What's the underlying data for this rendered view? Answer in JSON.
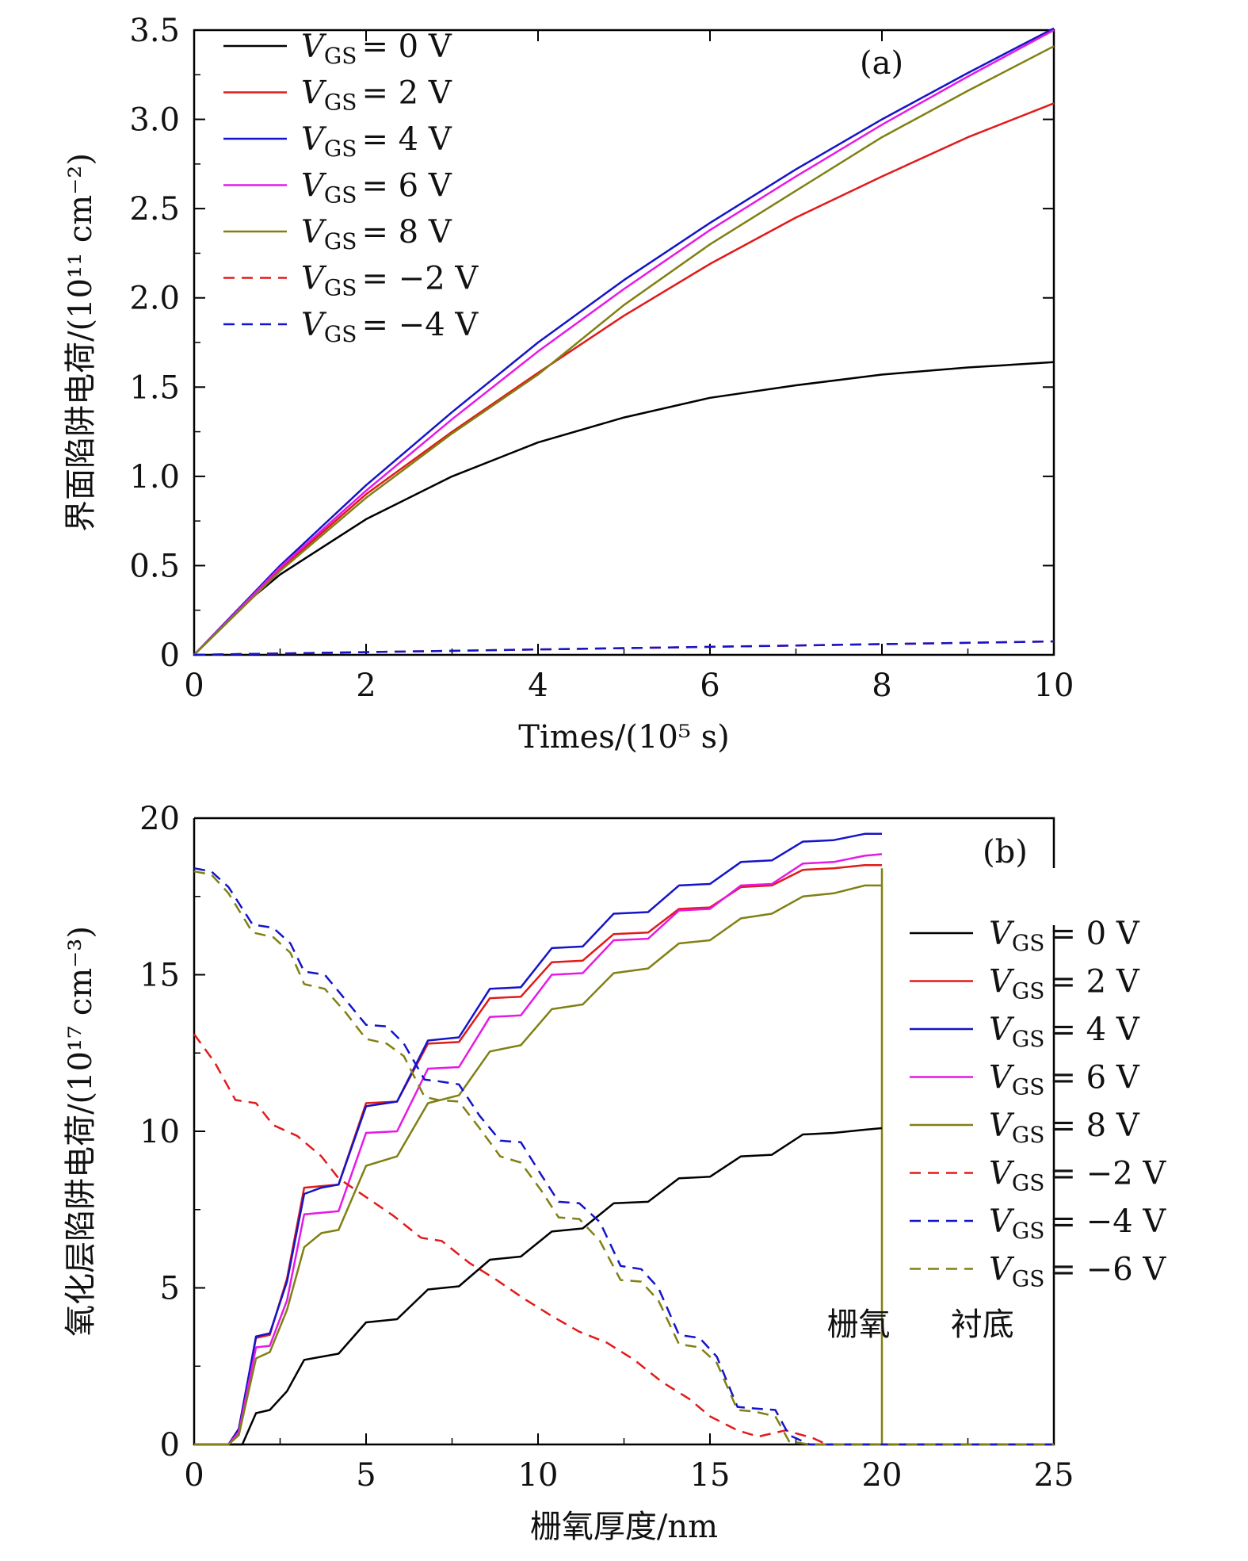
{
  "chart_data": [
    {
      "type": "line",
      "panel_label": "(a)",
      "xlabel": "Times/(10⁵ s)",
      "ylabel": "界面陷阱电荷/(10¹¹ cm⁻²)",
      "xlim": [
        0,
        10
      ],
      "ylim": [
        0,
        3.5
      ],
      "xticks": [
        0,
        2,
        4,
        6,
        8,
        10
      ],
      "xtick_labels": [
        "0",
        "2",
        "4",
        "6",
        "8",
        "10"
      ],
      "yticks": [
        0,
        0.5,
        1.0,
        1.5,
        2.0,
        2.5,
        3.0,
        3.5
      ],
      "ytick_labels": [
        "0",
        "0.5",
        "1.0",
        "1.5",
        "2.0",
        "2.5",
        "3.0",
        "3.5"
      ],
      "legend_position": "top-left",
      "series": [
        {
          "name": "V_GS = 0 V",
          "legend_text": "V GS = 0 V",
          "color": "#000000",
          "dash": "solid",
          "x": [
            0,
            0.5,
            1,
            2,
            3,
            4,
            5,
            6,
            7,
            8,
            9,
            10
          ],
          "values": [
            0,
            0.25,
            0.45,
            0.76,
            1.0,
            1.19,
            1.33,
            1.44,
            1.51,
            1.57,
            1.61,
            1.64
          ]
        },
        {
          "name": "V_GS = 2 V",
          "legend_text": "V GS = 2 V",
          "color": "#e11a1a",
          "dash": "solid",
          "x": [
            0,
            1,
            2,
            3,
            4,
            5,
            6,
            7,
            8,
            9,
            10
          ],
          "values": [
            0,
            0.48,
            0.9,
            1.25,
            1.58,
            1.9,
            2.19,
            2.45,
            2.68,
            2.9,
            3.09
          ]
        },
        {
          "name": "V_GS = 4 V",
          "legend_text": "V GS = 4 V",
          "color": "#1414c8",
          "dash": "solid",
          "x": [
            0,
            1,
            2,
            3,
            4,
            5,
            6,
            7,
            8,
            9,
            10
          ],
          "values": [
            0,
            0.5,
            0.95,
            1.36,
            1.75,
            2.1,
            2.42,
            2.72,
            3.0,
            3.26,
            3.51
          ]
        },
        {
          "name": "V_GS = 6 V",
          "legend_text": "V GS = 6 V",
          "color": "#e619e6",
          "dash": "solid",
          "x": [
            0,
            1,
            2,
            3,
            4,
            5,
            6,
            7,
            8,
            9,
            10
          ],
          "values": [
            0,
            0.49,
            0.92,
            1.32,
            1.7,
            2.05,
            2.38,
            2.68,
            2.97,
            3.24,
            3.5
          ]
        },
        {
          "name": "V_GS = 8 V",
          "legend_text": "V GS = 8 V",
          "color": "#808014",
          "dash": "solid",
          "x": [
            0,
            1,
            2,
            3,
            4,
            5,
            6,
            7,
            8,
            9,
            10
          ],
          "values": [
            0,
            0.47,
            0.88,
            1.24,
            1.57,
            1.96,
            2.3,
            2.6,
            2.9,
            3.16,
            3.41
          ]
        },
        {
          "name": "V_GS = −2 V",
          "legend_text": "V GS = −2 V",
          "color": "#e11a1a",
          "dash": "dashed",
          "x": [
            0,
            2,
            4,
            6,
            8,
            10
          ],
          "values": [
            0,
            0.015,
            0.03,
            0.045,
            0.06,
            0.075
          ]
        },
        {
          "name": "V_GS = −4 V",
          "legend_text": "V GS = −4 V",
          "color": "#1414c8",
          "dash": "dashed",
          "x": [
            0,
            2,
            4,
            6,
            8,
            10
          ],
          "values": [
            0,
            0.015,
            0.03,
            0.045,
            0.06,
            0.075
          ]
        }
      ]
    },
    {
      "type": "line",
      "panel_label": "(b)",
      "xlabel": "栅氧厚度/nm",
      "ylabel": "氧化层陷阱电荷/(10¹⁷ cm⁻³)",
      "xlim": [
        0,
        25
      ],
      "ylim": [
        0,
        20
      ],
      "xticks": [
        0,
        5,
        10,
        15,
        20,
        25
      ],
      "xtick_labels": [
        "0",
        "5",
        "10",
        "15",
        "20",
        "25"
      ],
      "yticks": [
        0,
        5,
        10,
        15,
        20
      ],
      "ytick_labels": [
        "0",
        "5",
        "10",
        "15",
        "20"
      ],
      "legend_position": "right",
      "annotations": [
        {
          "text": "栅氧",
          "x": 18.4,
          "y": 3.5
        },
        {
          "text": "衬底",
          "x": 22.0,
          "y": 3.5
        }
      ],
      "boundary_x": 20,
      "series": [
        {
          "name": "V_GS = 0 V",
          "legend_text": "V GS = 0 V",
          "color": "#000000",
          "dash": "solid",
          "x": [
            0,
            1.4,
            1.8,
            2.2,
            2.7,
            3.2,
            3.7,
            4.2,
            5.0,
            5.9,
            6.8,
            7.7,
            8.6,
            9.5,
            10.4,
            11.3,
            12.2,
            13.2,
            14.1,
            15.0,
            15.9,
            16.8,
            17.7,
            18.6,
            19.5,
            20
          ],
          "values": [
            0,
            0,
            1.0,
            1.1,
            1.7,
            2.7,
            2.8,
            2.9,
            3.9,
            4.0,
            4.95,
            5.05,
            5.9,
            6.0,
            6.8,
            6.9,
            7.7,
            7.75,
            8.5,
            8.55,
            9.2,
            9.25,
            9.9,
            9.95,
            10.05,
            10.1
          ]
        },
        {
          "name": "V_GS = 2 V",
          "legend_text": "V GS = 2 V",
          "color": "#e11a1a",
          "dash": "solid",
          "x": [
            0,
            1.0,
            1.3,
            1.8,
            2.2,
            2.7,
            3.2,
            3.7,
            4.2,
            5.0,
            5.9,
            6.8,
            7.7,
            8.6,
            9.5,
            10.4,
            11.3,
            12.2,
            13.2,
            14.1,
            15.0,
            15.9,
            16.8,
            17.7,
            18.6,
            19.5,
            20
          ],
          "values": [
            0,
            0,
            0.5,
            3.4,
            3.5,
            5.3,
            8.2,
            8.25,
            8.3,
            10.9,
            10.95,
            12.8,
            12.85,
            14.25,
            14.3,
            15.4,
            15.45,
            16.3,
            16.35,
            17.1,
            17.15,
            17.8,
            17.85,
            18.35,
            18.4,
            18.5,
            18.5
          ]
        },
        {
          "name": "V_GS = 4 V",
          "legend_text": "V GS = 4 V",
          "color": "#1414c8",
          "dash": "solid",
          "x": [
            0,
            1.0,
            1.3,
            1.8,
            2.2,
            2.7,
            3.2,
            3.7,
            4.2,
            5.0,
            5.9,
            6.8,
            7.7,
            8.6,
            9.5,
            10.4,
            11.3,
            12.2,
            13.2,
            14.1,
            15.0,
            15.9,
            16.8,
            17.7,
            18.6,
            19.5,
            20
          ],
          "values": [
            0,
            0,
            0.5,
            3.45,
            3.55,
            5.2,
            8.0,
            8.2,
            8.3,
            10.8,
            10.95,
            12.9,
            13.0,
            14.55,
            14.6,
            15.85,
            15.9,
            16.95,
            17.0,
            17.85,
            17.9,
            18.6,
            18.65,
            19.25,
            19.3,
            19.5,
            19.5
          ]
        },
        {
          "name": "V_GS = 6 V",
          "legend_text": "V GS = 6 V",
          "color": "#e619e6",
          "dash": "solid",
          "x": [
            0,
            1.0,
            1.3,
            1.8,
            2.2,
            2.7,
            3.2,
            3.7,
            4.2,
            5.0,
            5.9,
            6.8,
            7.7,
            8.6,
            9.5,
            10.4,
            11.3,
            12.2,
            13.2,
            14.1,
            15.0,
            15.9,
            16.8,
            17.7,
            18.6,
            19.5,
            20
          ],
          "values": [
            0,
            0,
            0.4,
            3.1,
            3.15,
            4.6,
            7.35,
            7.4,
            7.45,
            9.95,
            10.0,
            12.0,
            12.05,
            13.65,
            13.7,
            15.0,
            15.05,
            16.1,
            16.15,
            17.05,
            17.1,
            17.85,
            17.9,
            18.55,
            18.6,
            18.8,
            18.85
          ]
        },
        {
          "name": "V_GS = 8 V",
          "legend_text": "V GS = 8 V",
          "color": "#808014",
          "dash": "solid",
          "x": [
            0,
            1.0,
            1.3,
            1.8,
            2.2,
            2.7,
            3.2,
            3.7,
            4.2,
            5.0,
            5.9,
            6.8,
            7.7,
            8.6,
            9.5,
            10.4,
            11.3,
            12.2,
            13.2,
            14.1,
            15.0,
            15.9,
            16.8,
            17.7,
            18.6,
            19.5,
            20
          ],
          "values": [
            0,
            0,
            0.3,
            2.75,
            2.95,
            4.3,
            6.3,
            6.75,
            6.85,
            8.9,
            9.2,
            10.9,
            11.15,
            12.55,
            12.75,
            13.9,
            14.05,
            15.05,
            15.2,
            16.0,
            16.1,
            16.8,
            16.95,
            17.5,
            17.6,
            17.85,
            17.85
          ]
        },
        {
          "name": "V_GS = −2 V",
          "legend_text": "V GS = −2 V",
          "color": "#e11a1a",
          "dash": "dashed",
          "x": [
            0,
            0.6,
            1.2,
            1.8,
            2.3,
            3.0,
            3.7,
            4.2,
            5.0,
            5.8,
            6.6,
            7.2,
            8.0,
            8.8,
            9.6,
            10.4,
            11.2,
            12.0,
            12.8,
            13.6,
            14.4,
            15.0,
            15.8,
            16.4,
            17.2,
            18.0,
            18.4,
            25
          ],
          "values": [
            13.1,
            12.2,
            11.0,
            10.9,
            10.2,
            9.85,
            9.2,
            8.5,
            7.9,
            7.3,
            6.6,
            6.5,
            5.8,
            5.25,
            4.65,
            4.1,
            3.6,
            3.25,
            2.7,
            2.0,
            1.45,
            0.9,
            0.45,
            0.25,
            0.45,
            0.2,
            0,
            0
          ]
        },
        {
          "name": "V_GS = −4 V",
          "legend_text": "V GS = −4 V",
          "color": "#1414c8",
          "dash": "dashed",
          "x": [
            0,
            0.5,
            1.0,
            1.7,
            2.3,
            2.8,
            3.2,
            3.8,
            4.4,
            5.0,
            5.6,
            6.1,
            6.7,
            7.1,
            7.7,
            8.3,
            8.9,
            9.5,
            10.1,
            10.6,
            11.2,
            11.8,
            12.4,
            13.0,
            13.5,
            14.1,
            14.7,
            15.2,
            15.8,
            16.3,
            16.9,
            17.3,
            17.9,
            25
          ],
          "values": [
            18.4,
            18.3,
            17.8,
            16.6,
            16.5,
            16.0,
            15.1,
            15.0,
            14.2,
            13.4,
            13.35,
            12.8,
            11.65,
            11.6,
            11.5,
            10.5,
            9.7,
            9.65,
            8.6,
            7.75,
            7.7,
            7.1,
            5.7,
            5.6,
            5.0,
            3.5,
            3.4,
            2.8,
            1.2,
            1.15,
            1.1,
            0.3,
            0,
            0
          ]
        },
        {
          "name": "V_GS = −6 V",
          "legend_text": "V GS = −6 V",
          "color": "#808014",
          "dash": "dashed",
          "x": [
            0,
            0.5,
            1.0,
            1.7,
            2.3,
            2.8,
            3.2,
            3.8,
            4.4,
            5.0,
            5.6,
            6.1,
            6.7,
            7.1,
            7.7,
            8.3,
            8.9,
            9.5,
            10.1,
            10.6,
            11.2,
            11.8,
            12.4,
            13.0,
            13.5,
            14.1,
            14.7,
            15.2,
            15.8,
            16.3,
            16.9,
            17.3,
            17.9,
            25
          ],
          "values": [
            18.3,
            18.2,
            17.6,
            16.35,
            16.2,
            15.7,
            14.7,
            14.55,
            13.8,
            12.95,
            12.8,
            12.4,
            11.1,
            11.0,
            10.95,
            10.1,
            9.2,
            9.0,
            8.1,
            7.25,
            7.2,
            6.5,
            5.25,
            5.2,
            4.6,
            3.2,
            3.1,
            2.6,
            1.1,
            1.05,
            0.9,
            0.1,
            0,
            0
          ]
        }
      ]
    }
  ]
}
